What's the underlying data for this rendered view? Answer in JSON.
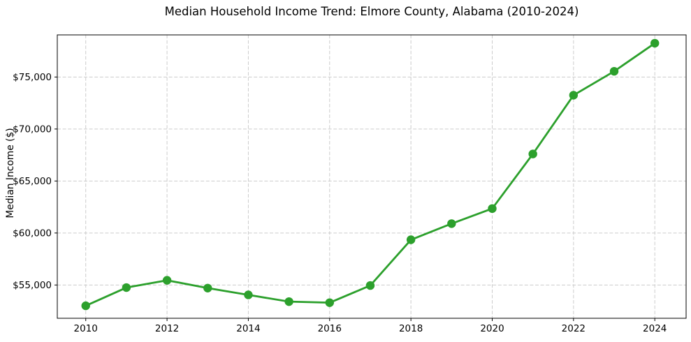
{
  "chart_data": {
    "type": "line",
    "title": "Median Household Income Trend: Elmore County, Alabama (2010-2024)",
    "xlabel": "",
    "ylabel": "Median Income ($)",
    "x": [
      2010,
      2011,
      2012,
      2013,
      2014,
      2015,
      2016,
      2017,
      2018,
      2019,
      2020,
      2021,
      2022,
      2023,
      2024
    ],
    "series": [
      {
        "name": "Median household income",
        "values": [
          53000,
          54750,
          55450,
          54700,
          54050,
          53400,
          53300,
          54950,
          59350,
          60900,
          62350,
          67600,
          73250,
          75550,
          78250
        ]
      }
    ],
    "xticks": {
      "values": [
        2010,
        2012,
        2014,
        2016,
        2018,
        2020,
        2022,
        2024
      ],
      "labels": [
        "2010",
        "2012",
        "2014",
        "2016",
        "2018",
        "2020",
        "2022",
        "2024"
      ]
    },
    "yticks": {
      "values": [
        55000,
        60000,
        65000,
        70000,
        75000
      ],
      "labels": [
        "$55,000",
        "$60,000",
        "$65,000",
        "$70,000",
        "$75,000"
      ]
    },
    "xlim": [
      2009.3,
      2024.77
    ],
    "ylim": [
      51800,
      79050
    ],
    "grid": true,
    "grid_style": "dashed",
    "legend_position": "none",
    "colors": {
      "line": "#2ca02c",
      "marker": "#2ca02c",
      "grid": "#cccccc",
      "spine": "#000000",
      "text": "#000000",
      "background": "#ffffff"
    }
  }
}
